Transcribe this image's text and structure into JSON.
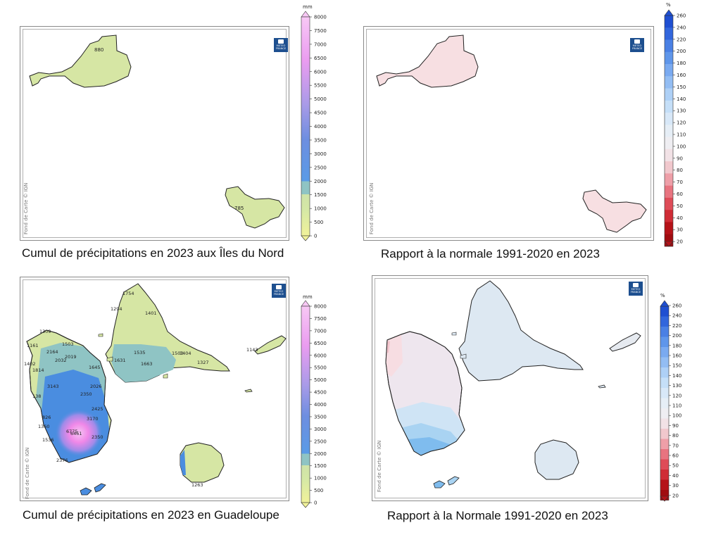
{
  "credit": "Fond de Carte © IGN",
  "logo_text": "METEO FRANCE",
  "precip_scale": {
    "unit": "mm",
    "ticks": [
      "8000",
      "7500",
      "7000",
      "6500",
      "6000",
      "5500",
      "5000",
      "4500",
      "4000",
      "3500",
      "3000",
      "2500",
      "2000",
      "1500",
      "1000",
      "500",
      "0"
    ]
  },
  "ratio_scale": {
    "unit": "%",
    "ticks": [
      "260",
      "240",
      "220",
      "200",
      "180",
      "160",
      "150",
      "140",
      "130",
      "120",
      "110",
      "100",
      "90",
      "80",
      "70",
      "60",
      "50",
      "40",
      "30",
      "20"
    ]
  },
  "panels": [
    {
      "caption": "Cumul de précipitations en 2023 aux Îles du Nord",
      "labels": [
        "880",
        "785"
      ]
    },
    {
      "caption": "Rapport à la normale 1991-2020 en 2023",
      "labels": []
    },
    {
      "caption": "Cumul de précipitations en 2023 en Guadeloupe",
      "labels": [
        "1754",
        "1294",
        "1401",
        "1309",
        "1503",
        "1161",
        "2164",
        "2019",
        "2032",
        "1535",
        "1631",
        "1663",
        "1503",
        "1404",
        "1327",
        "1143",
        "1402",
        "1814",
        "1645",
        "3143",
        "2026",
        "2350",
        "138",
        "2425",
        "3170",
        "826",
        "1360",
        "6775",
        "6461",
        "2350",
        "1536",
        "2376",
        "1263"
      ]
    },
    {
      "caption": "Rapport à la Normale 1991-2020 en 2023",
      "labels": []
    }
  ],
  "colors": {
    "land_low": "#d6e6a4",
    "land_teal": "#8fc4c4",
    "land_blue": "#4a8de0",
    "peak_pink": "#f088e8",
    "ratio_pale_red": "#f7dfe2",
    "ratio_pale_blue": "#dde8f2",
    "ratio_light_blue": "#a9d3f2"
  }
}
